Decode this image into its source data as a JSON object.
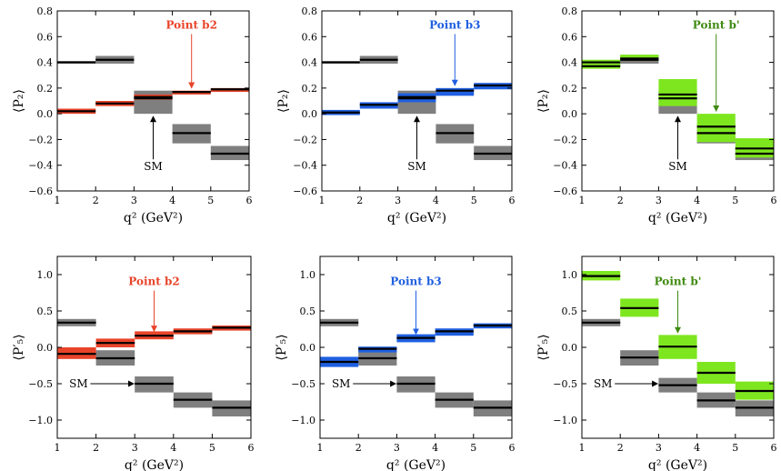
{
  "colors": {
    "sm_band": "#7f7f7f",
    "b2": "#e8442a",
    "b3": "#1f5fe0",
    "bprime": "#7ee61f",
    "bprime_text": "#3f8a10",
    "axis": "#000000"
  },
  "chart_data": [
    {
      "type": "bar",
      "panel": "P2-b2",
      "xlabel": "q² (GeV²)",
      "ylabel": "⟨P₂⟩",
      "xlim": [
        1,
        6
      ],
      "ylim": [
        -0.6,
        0.8
      ],
      "xticks": [
        1,
        2,
        3,
        4,
        5,
        6
      ],
      "yticks": [
        -0.6,
        -0.4,
        -0.2,
        0.0,
        0.2,
        0.4,
        0.6,
        0.8
      ],
      "ytick_labels": [
        "−0.6",
        "−0.4",
        "−0.2",
        "0.0",
        "0.2",
        "0.4",
        "0.6",
        "0.8"
      ],
      "annotation": "Point b2",
      "annotation_color": "b2",
      "arrow_x": 4.5,
      "arrow_from_y": 0.62,
      "arrow_to_y": 0.2,
      "sm_label": "SM",
      "sm_label_style": "vertical",
      "sm_label_x": 3.5,
      "sm_label_y": -0.34,
      "sm_arrow_to_y": -0.02,
      "series": [
        {
          "name": "SM",
          "color": "sm_band",
          "bins": [
            {
              "x0": 1,
              "x1": 2,
              "center": 0.4,
              "lo": 0.39,
              "hi": 0.41
            },
            {
              "x0": 2,
              "x1": 3,
              "center": 0.42,
              "lo": 0.39,
              "hi": 0.45
            },
            {
              "x0": 3,
              "x1": 4,
              "center": 0.12,
              "lo": 0.0,
              "hi": 0.18
            },
            {
              "x0": 4,
              "x1": 5,
              "center": -0.15,
              "lo": -0.23,
              "hi": -0.08
            },
            {
              "x0": 5,
              "x1": 6,
              "center": -0.31,
              "lo": -0.36,
              "hi": -0.25
            }
          ]
        },
        {
          "name": "Point b2",
          "color": "b2",
          "bins": [
            {
              "x0": 1,
              "x1": 2,
              "center": 0.02,
              "lo": 0.0,
              "hi": 0.04
            },
            {
              "x0": 2,
              "x1": 3,
              "center": 0.08,
              "lo": 0.06,
              "hi": 0.1
            },
            {
              "x0": 3,
              "x1": 4,
              "center": 0.13,
              "lo": 0.11,
              "hi": 0.15
            },
            {
              "x0": 4,
              "x1": 5,
              "center": 0.17,
              "lo": 0.15,
              "hi": 0.18
            },
            {
              "x0": 5,
              "x1": 6,
              "center": 0.19,
              "lo": 0.17,
              "hi": 0.2
            }
          ]
        }
      ]
    },
    {
      "type": "bar",
      "panel": "P2-b3",
      "xlabel": "q² (GeV²)",
      "ylabel": "⟨P₂⟩",
      "xlim": [
        1,
        6
      ],
      "ylim": [
        -0.6,
        0.8
      ],
      "xticks": [
        1,
        2,
        3,
        4,
        5,
        6
      ],
      "yticks": [
        -0.6,
        -0.4,
        -0.2,
        0.0,
        0.2,
        0.4,
        0.6,
        0.8
      ],
      "ytick_labels": [
        "−0.6",
        "−0.4",
        "−0.2",
        "0.0",
        "0.2",
        "0.4",
        "0.6",
        "0.8"
      ],
      "annotation": "Point b3",
      "annotation_color": "b3",
      "arrow_x": 4.5,
      "arrow_from_y": 0.62,
      "arrow_to_y": 0.22,
      "sm_label": "SM",
      "sm_label_style": "vertical",
      "sm_label_x": 3.5,
      "sm_label_y": -0.34,
      "sm_arrow_to_y": -0.02,
      "series": [
        {
          "name": "SM",
          "color": "sm_band",
          "bins": [
            {
              "x0": 1,
              "x1": 2,
              "center": 0.4,
              "lo": 0.39,
              "hi": 0.41
            },
            {
              "x0": 2,
              "x1": 3,
              "center": 0.42,
              "lo": 0.39,
              "hi": 0.45
            },
            {
              "x0": 3,
              "x1": 4,
              "center": 0.12,
              "lo": 0.0,
              "hi": 0.18
            },
            {
              "x0": 4,
              "x1": 5,
              "center": -0.15,
              "lo": -0.23,
              "hi": -0.08
            },
            {
              "x0": 5,
              "x1": 6,
              "center": -0.31,
              "lo": -0.36,
              "hi": -0.25
            }
          ]
        },
        {
          "name": "Point b3",
          "color": "b3",
          "bins": [
            {
              "x0": 1,
              "x1": 2,
              "center": 0.01,
              "lo": -0.01,
              "hi": 0.03
            },
            {
              "x0": 2,
              "x1": 3,
              "center": 0.07,
              "lo": 0.04,
              "hi": 0.09
            },
            {
              "x0": 3,
              "x1": 4,
              "center": 0.13,
              "lo": 0.09,
              "hi": 0.16
            },
            {
              "x0": 4,
              "x1": 5,
              "center": 0.18,
              "lo": 0.14,
              "hi": 0.2
            },
            {
              "x0": 5,
              "x1": 6,
              "center": 0.22,
              "lo": 0.19,
              "hi": 0.24
            }
          ]
        }
      ]
    },
    {
      "type": "bar",
      "panel": "P2-bprime",
      "xlabel": "q² (GeV²)",
      "ylabel": "⟨P₂⟩",
      "xlim": [
        1,
        6
      ],
      "ylim": [
        -0.6,
        0.8
      ],
      "xticks": [
        1,
        2,
        3,
        4,
        5,
        6
      ],
      "yticks": [
        -0.6,
        -0.4,
        -0.2,
        0.0,
        0.2,
        0.4,
        0.6,
        0.8
      ],
      "ytick_labels": [
        "−0.6",
        "−0.4",
        "−0.2",
        "0.0",
        "0.2",
        "0.4",
        "0.6",
        "0.8"
      ],
      "annotation": "Point b'",
      "annotation_color": "bprime_text",
      "arrow_x": 4.5,
      "arrow_from_y": 0.62,
      "arrow_to_y": 0.02,
      "sm_label": "SM",
      "sm_label_style": "vertical",
      "sm_label_x": 3.5,
      "sm_label_y": -0.34,
      "sm_arrow_to_y": -0.02,
      "series": [
        {
          "name": "SM",
          "color": "sm_band",
          "bins": [
            {
              "x0": 1,
              "x1": 2,
              "center": 0.4,
              "lo": 0.37,
              "hi": 0.41
            },
            {
              "x0": 2,
              "x1": 3,
              "center": 0.42,
              "lo": 0.39,
              "hi": 0.45
            },
            {
              "x0": 3,
              "x1": 4,
              "center": 0.12,
              "lo": 0.0,
              "hi": 0.18
            },
            {
              "x0": 4,
              "x1": 5,
              "center": -0.15,
              "lo": -0.23,
              "hi": -0.08
            },
            {
              "x0": 5,
              "x1": 6,
              "center": -0.31,
              "lo": -0.36,
              "hi": -0.25
            }
          ]
        },
        {
          "name": "Point b'",
          "color": "bprime",
          "bins": [
            {
              "x0": 1,
              "x1": 2,
              "center": 0.37,
              "lo": 0.35,
              "hi": 0.42
            },
            {
              "x0": 2,
              "x1": 3,
              "center": 0.43,
              "lo": 0.42,
              "hi": 0.46
            },
            {
              "x0": 3,
              "x1": 4,
              "center": 0.15,
              "lo": 0.06,
              "hi": 0.27
            },
            {
              "x0": 4,
              "x1": 5,
              "center": -0.1,
              "lo": -0.22,
              "hi": 0.0
            },
            {
              "x0": 5,
              "x1": 6,
              "center": -0.27,
              "lo": -0.34,
              "hi": -0.19
            }
          ]
        }
      ]
    },
    {
      "type": "bar",
      "panel": "P5p-b2",
      "xlabel": "q² (GeV²)",
      "ylabel": "⟨P′₅⟩",
      "xlim": [
        1,
        6
      ],
      "ylim": [
        -1.25,
        1.25
      ],
      "xticks": [
        1,
        2,
        3,
        4,
        5,
        6
      ],
      "yticks": [
        -1.0,
        -0.5,
        0.0,
        0.5,
        1.0
      ],
      "ytick_labels": [
        "−1.0",
        "−0.5",
        "0.0",
        "0.5",
        "1.0"
      ],
      "annotation": "Point b2",
      "annotation_color": "b2",
      "arrow_x": 3.5,
      "arrow_from_y": 0.78,
      "arrow_to_y": 0.22,
      "sm_label": "SM",
      "sm_label_style": "horizontal",
      "sm_label_x": 1.55,
      "sm_label_y": -0.5,
      "sm_arrow_to_x": 3.0,
      "series": [
        {
          "name": "SM",
          "color": "sm_band",
          "bins": [
            {
              "x0": 1,
              "x1": 2,
              "center": 0.34,
              "lo": 0.29,
              "hi": 0.39
            },
            {
              "x0": 2,
              "x1": 3,
              "center": -0.15,
              "lo": -0.25,
              "hi": -0.04
            },
            {
              "x0": 3,
              "x1": 4,
              "center": -0.5,
              "lo": -0.62,
              "hi": -0.4
            },
            {
              "x0": 4,
              "x1": 5,
              "center": -0.72,
              "lo": -0.83,
              "hi": -0.62
            },
            {
              "x0": 5,
              "x1": 6,
              "center": -0.83,
              "lo": -0.95,
              "hi": -0.73
            }
          ]
        },
        {
          "name": "Point b2",
          "color": "b2",
          "bins": [
            {
              "x0": 1,
              "x1": 2,
              "center": -0.09,
              "lo": -0.16,
              "hi": 0.0
            },
            {
              "x0": 2,
              "x1": 3,
              "center": 0.06,
              "lo": 0.0,
              "hi": 0.12
            },
            {
              "x0": 3,
              "x1": 4,
              "center": 0.16,
              "lo": 0.11,
              "hi": 0.22
            },
            {
              "x0": 4,
              "x1": 5,
              "center": 0.22,
              "lo": 0.18,
              "hi": 0.26
            },
            {
              "x0": 5,
              "x1": 6,
              "center": 0.27,
              "lo": 0.23,
              "hi": 0.3
            }
          ]
        }
      ]
    },
    {
      "type": "bar",
      "panel": "P5p-b3",
      "xlabel": "q² (GeV²)",
      "ylabel": "⟨P′₅⟩",
      "xlim": [
        1,
        6
      ],
      "ylim": [
        -1.25,
        1.25
      ],
      "xticks": [
        1,
        2,
        3,
        4,
        5,
        6
      ],
      "yticks": [
        -1.0,
        -0.5,
        0.0,
        0.5,
        1.0
      ],
      "ytick_labels": [
        "−1.0",
        "−0.5",
        "0.0",
        "0.5",
        "1.0"
      ],
      "annotation": "Point b3",
      "annotation_color": "b3",
      "arrow_x": 3.5,
      "arrow_from_y": 0.78,
      "arrow_to_y": 0.18,
      "sm_label": "SM",
      "sm_label_style": "horizontal",
      "sm_label_x": 1.55,
      "sm_label_y": -0.5,
      "sm_arrow_to_x": 3.0,
      "series": [
        {
          "name": "SM",
          "color": "sm_band",
          "bins": [
            {
              "x0": 1,
              "x1": 2,
              "center": 0.34,
              "lo": 0.29,
              "hi": 0.39
            },
            {
              "x0": 2,
              "x1": 3,
              "center": -0.15,
              "lo": -0.25,
              "hi": -0.04
            },
            {
              "x0": 3,
              "x1": 4,
              "center": -0.5,
              "lo": -0.62,
              "hi": -0.4
            },
            {
              "x0": 4,
              "x1": 5,
              "center": -0.72,
              "lo": -0.83,
              "hi": -0.62
            },
            {
              "x0": 5,
              "x1": 6,
              "center": -0.83,
              "lo": -0.95,
              "hi": -0.73
            }
          ]
        },
        {
          "name": "Point b3",
          "color": "b3",
          "bins": [
            {
              "x0": 1,
              "x1": 2,
              "center": -0.2,
              "lo": -0.27,
              "hi": -0.13
            },
            {
              "x0": 2,
              "x1": 3,
              "center": -0.02,
              "lo": -0.07,
              "hi": 0.01
            },
            {
              "x0": 3,
              "x1": 4,
              "center": 0.13,
              "lo": 0.07,
              "hi": 0.18
            },
            {
              "x0": 4,
              "x1": 5,
              "center": 0.22,
              "lo": 0.16,
              "hi": 0.26
            },
            {
              "x0": 5,
              "x1": 6,
              "center": 0.3,
              "lo": 0.26,
              "hi": 0.33
            }
          ]
        }
      ]
    },
    {
      "type": "bar",
      "panel": "P5p-bprime",
      "xlabel": "q² (GeV²)",
      "ylabel": "⟨P′₅⟩",
      "xlim": [
        1,
        6
      ],
      "ylim": [
        -1.25,
        1.25
      ],
      "xticks": [
        1,
        2,
        3,
        4,
        5,
        6
      ],
      "yticks": [
        -1.0,
        -0.5,
        0.0,
        0.5,
        1.0
      ],
      "ytick_labels": [
        "−1.0",
        "−0.5",
        "0.0",
        "0.5",
        "1.0"
      ],
      "annotation": "Point b'",
      "annotation_color": "bprime_text",
      "arrow_x": 3.5,
      "arrow_from_y": 0.78,
      "arrow_to_y": 0.2,
      "sm_label": "SM",
      "sm_label_style": "horizontal",
      "sm_label_x": 1.55,
      "sm_label_y": -0.5,
      "sm_arrow_to_x": 3.0,
      "series": [
        {
          "name": "SM",
          "color": "sm_band",
          "bins": [
            {
              "x0": 1,
              "x1": 2,
              "center": 0.34,
              "lo": 0.29,
              "hi": 0.39
            },
            {
              "x0": 2,
              "x1": 3,
              "center": -0.14,
              "lo": -0.25,
              "hi": -0.04
            },
            {
              "x0": 3,
              "x1": 4,
              "center": -0.52,
              "lo": -0.62,
              "hi": -0.42
            },
            {
              "x0": 4,
              "x1": 5,
              "center": -0.73,
              "lo": -0.83,
              "hi": -0.62
            },
            {
              "x0": 5,
              "x1": 6,
              "center": -0.83,
              "lo": -0.95,
              "hi": -0.73
            }
          ]
        },
        {
          "name": "Point b'",
          "color": "bprime",
          "bins": [
            {
              "x0": 1,
              "x1": 2,
              "center": 0.98,
              "lo": 0.92,
              "hi": 1.05
            },
            {
              "x0": 2,
              "x1": 3,
              "center": 0.54,
              "lo": 0.42,
              "hi": 0.67
            },
            {
              "x0": 3,
              "x1": 4,
              "center": 0.01,
              "lo": -0.16,
              "hi": 0.17
            },
            {
              "x0": 4,
              "x1": 5,
              "center": -0.35,
              "lo": -0.5,
              "hi": -0.2
            },
            {
              "x0": 5,
              "x1": 6,
              "center": -0.6,
              "lo": -0.72,
              "hi": -0.47
            }
          ]
        }
      ]
    }
  ]
}
